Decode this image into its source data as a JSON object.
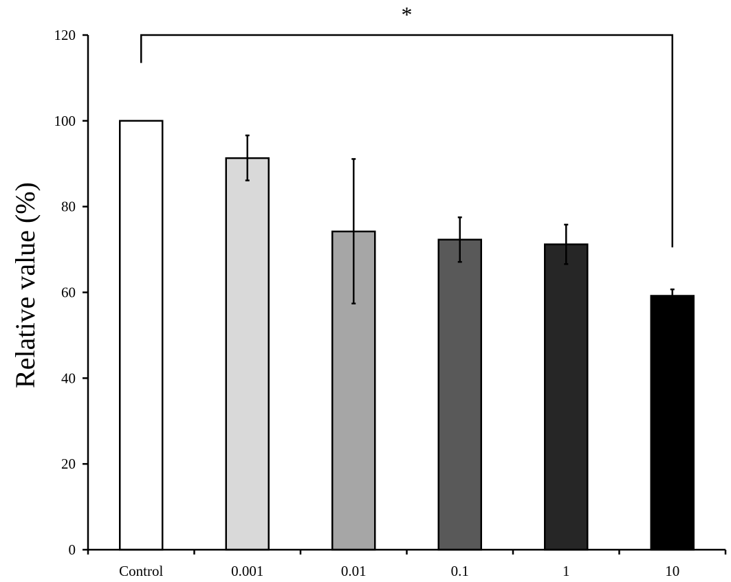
{
  "chart_data": {
    "type": "bar",
    "ylabel": "Relative value (%)",
    "xlabel": "",
    "ylim": [
      0,
      120
    ],
    "yticks": [
      0,
      20,
      40,
      60,
      80,
      100,
      120
    ],
    "ytick_labels": [
      "0",
      "20",
      "40",
      "60",
      "80",
      "100",
      "120"
    ],
    "grid": false,
    "legend": "none",
    "categories": [
      "Control",
      "0.001",
      "0.01",
      "0.1",
      "1",
      "10"
    ],
    "values": [
      100,
      91.3,
      74.2,
      72.3,
      71.2,
      59.2
    ],
    "error_upper": [
      100,
      96.6,
      91.1,
      77.5,
      75.8,
      60.7
    ],
    "error_lower": [
      100,
      86.1,
      57.4,
      67.1,
      66.6,
      57.7
    ],
    "bar_colors": [
      "#ffffff",
      "#d9d9d9",
      "#a6a6a6",
      "#595959",
      "#262626",
      "#000000"
    ],
    "significance": {
      "label": "*",
      "from_category": "Control",
      "to_category": "10",
      "bracket_y": 120,
      "from_drop_to": 113.5,
      "to_drop_to": 70.5
    }
  }
}
